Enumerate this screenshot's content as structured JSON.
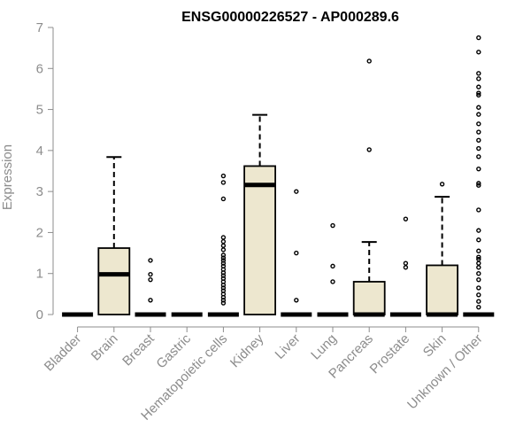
{
  "chart_data": {
    "type": "box",
    "title": "ENSG00000226527 - AP000289.6",
    "xlabel": "",
    "ylabel": "Expression",
    "ylim": [
      0,
      7
    ],
    "yticks": [
      0,
      1,
      2,
      3,
      4,
      5,
      6,
      7
    ],
    "grid": false,
    "colors": {
      "box_fill": "#ede7cf",
      "box_stroke": "#000000",
      "axis": "#8c8c8c",
      "text": "#8c8c8c"
    },
    "categories": [
      "Bladder",
      "Brain",
      "Breast",
      "Gastric",
      "Hematopoietic cells",
      "Kidney",
      "Liver",
      "Lung",
      "Pancreas",
      "Prostate",
      "Skin",
      "Unknown / Other"
    ],
    "boxes": [
      {
        "category": "Bladder",
        "min": 0,
        "q1": 0,
        "median": 0,
        "q3": 0,
        "max": 0,
        "outliers": []
      },
      {
        "category": "Brain",
        "min": 0,
        "q1": 0,
        "median": 0.98,
        "q3": 1.62,
        "max": 3.84,
        "outliers": []
      },
      {
        "category": "Breast",
        "min": 0,
        "q1": 0,
        "median": 0,
        "q3": 0,
        "max": 0,
        "outliers": [
          1.32,
          0.98,
          0.85,
          0.35
        ]
      },
      {
        "category": "Gastric",
        "min": 0,
        "q1": 0,
        "median": 0,
        "q3": 0,
        "max": 0,
        "outliers": []
      },
      {
        "category": "Hematopoietic cells",
        "min": 0,
        "q1": 0,
        "median": 0,
        "q3": 0,
        "max": 0,
        "outliers": [
          3.38,
          3.22,
          2.82,
          1.88,
          1.78,
          1.68,
          1.58,
          1.45,
          1.38,
          1.32,
          1.25,
          1.18,
          1.1,
          1.02,
          0.95,
          0.88,
          0.8,
          0.72,
          0.65,
          0.58,
          0.5,
          0.42,
          0.35,
          0.28
        ]
      },
      {
        "category": "Kidney",
        "min": 0,
        "q1": 0,
        "median": 3.16,
        "q3": 3.62,
        "max": 4.87,
        "outliers": []
      },
      {
        "category": "Liver",
        "min": 0,
        "q1": 0,
        "median": 0,
        "q3": 0,
        "max": 0,
        "outliers": [
          3.0,
          1.5,
          0.35
        ]
      },
      {
        "category": "Lung",
        "min": 0,
        "q1": 0,
        "median": 0,
        "q3": 0,
        "max": 0,
        "outliers": [
          2.17,
          1.18,
          0.8
        ]
      },
      {
        "category": "Pancreas",
        "min": 0,
        "q1": 0,
        "median": 0,
        "q3": 0.8,
        "max": 1.77,
        "outliers": [
          6.18,
          4.02
        ]
      },
      {
        "category": "Prostate",
        "min": 0,
        "q1": 0,
        "median": 0,
        "q3": 0,
        "max": 0,
        "outliers": [
          2.33,
          1.25,
          1.15
        ]
      },
      {
        "category": "Skin",
        "min": 0,
        "q1": 0,
        "median": 0,
        "q3": 1.2,
        "max": 2.87,
        "outliers": [
          3.18
        ]
      },
      {
        "category": "Unknown / Other",
        "min": 0,
        "q1": 0,
        "median": 0,
        "q3": 0,
        "max": 0,
        "outliers": [
          6.75,
          6.4,
          5.88,
          5.75,
          5.55,
          5.4,
          5.35,
          5.05,
          4.88,
          4.65,
          4.45,
          4.25,
          4.05,
          3.85,
          3.55,
          3.2,
          3.15,
          2.55,
          2.05,
          1.82,
          1.55,
          1.4,
          1.35,
          1.25,
          1.15,
          1.0,
          0.85,
          0.65,
          0.48,
          0.32,
          0.18
        ]
      }
    ]
  }
}
